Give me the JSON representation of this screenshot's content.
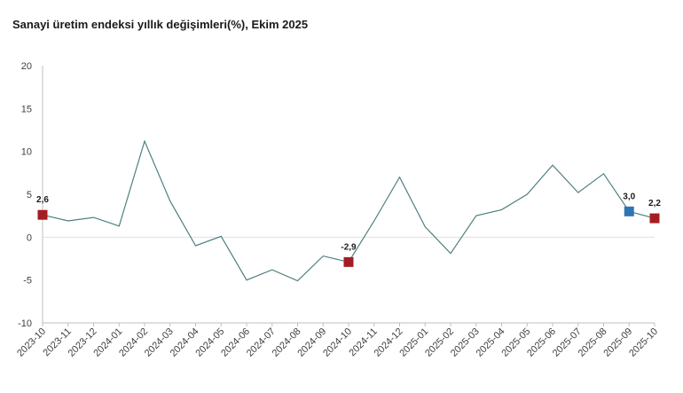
{
  "chart_data": {
    "type": "line",
    "title": "Sanayi üretim endeksi yıllık değişimleri(%), Ekim 2025",
    "xlabel": "",
    "ylabel": "",
    "ylim": [
      -10,
      20
    ],
    "yticks": [
      -10,
      -5,
      0,
      5,
      10,
      15,
      20
    ],
    "x": [
      "2023-10",
      "2023-11",
      "2023-12",
      "2024-01",
      "2024-02",
      "2024-03",
      "2024-04",
      "2024-05",
      "2024-06",
      "2024-07",
      "2024-08",
      "2024-09",
      "2024-10",
      "2024-11",
      "2024-12",
      "2025-01",
      "2025-02",
      "2025-03",
      "2025-04",
      "2025-05",
      "2025-06",
      "2025-07",
      "2025-08",
      "2025-09",
      "2025-10"
    ],
    "series": [
      {
        "values": [
          2.6,
          1.9,
          2.3,
          1.3,
          11.2,
          4.2,
          -1.0,
          0.1,
          -5.0,
          -3.8,
          -5.1,
          -2.2,
          -2.9,
          1.9,
          7.0,
          1.2,
          -1.9,
          2.5,
          3.2,
          5.0,
          8.4,
          5.2,
          7.4,
          3.0,
          2.2
        ]
      }
    ],
    "line_color": "#4f7f7f",
    "grid": false,
    "highlights": [
      {
        "index": 0,
        "label": "2,6",
        "color": "#a61c23"
      },
      {
        "index": 12,
        "label": "-2,9",
        "color": "#a61c23"
      },
      {
        "index": 23,
        "label": "3,0",
        "color": "#2e74b5"
      },
      {
        "index": 24,
        "label": "2,2",
        "color": "#a61c23"
      }
    ]
  }
}
